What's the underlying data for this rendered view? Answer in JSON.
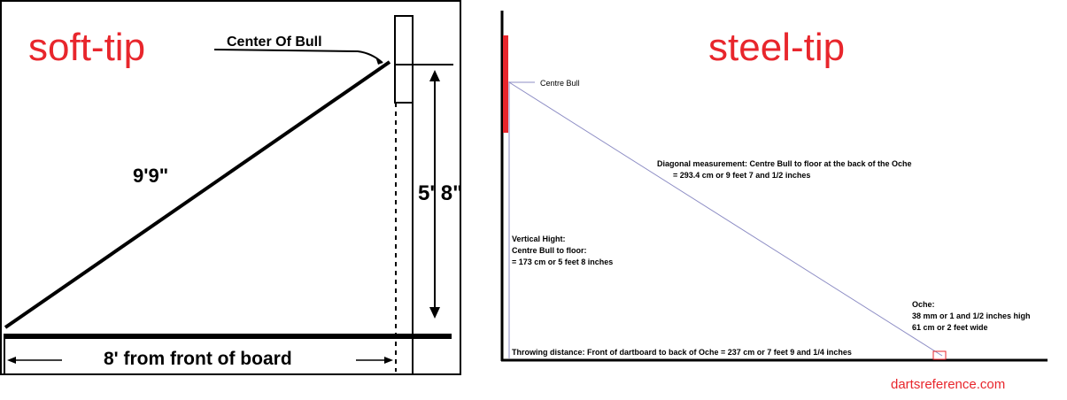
{
  "soft_tip": {
    "title": "soft-tip",
    "center_label": "Center Of Bull",
    "diagonal_label": "9'9\"",
    "height_label": "5' 8\"",
    "distance_label": "8' from front of board"
  },
  "steel_tip": {
    "title": "steel-tip",
    "centre_label": "Centre Bull",
    "diagonal_line1": "Diagonal measurement: Centre Bull to floor at the back of the Oche",
    "diagonal_line2": "= 293.4 cm or 9 feet 7 and 1/2 inches",
    "vertical_line1": "Vertical Hight:",
    "vertical_line2": "Centre Bull to floor:",
    "vertical_line3": "= 173 cm or 5 feet 8 inches",
    "oche_line1": "Oche:",
    "oche_line2": "38 mm or 1 and 1/2 inches high",
    "oche_line3": "61 cm or 2 feet wide",
    "throwing_label": "Throwing distance: Front of dartboard to back of Oche = 237 cm or 7 feet 9 and 1/4 inches",
    "watermark": "dartsreference.com"
  },
  "colors": {
    "title_red": "#e8262c",
    "board_red": "#e8262c",
    "diag_line": "#8c8cc4",
    "black": "#000000"
  }
}
